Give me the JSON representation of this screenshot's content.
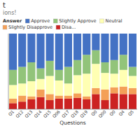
{
  "chart_data": {
    "type": "bar",
    "stacked": true,
    "title": "t",
    "subtitle": "ions!",
    "x_label": "Questions",
    "legend_title": "Answer",
    "legend": "top",
    "categories": [
      "Q1",
      "Q12",
      "Q13",
      "Q14",
      "Q15",
      "Q06",
      "Q17",
      "Q18",
      "Q19",
      "Q0",
      "Q00",
      "Q0",
      "Q4",
      "Q5"
    ],
    "series": [
      {
        "name": "Disa...",
        "color": "#CC2222",
        "values": [
          8,
          10,
          13,
          16,
          12,
          14,
          14,
          15,
          13,
          20,
          12,
          21,
          20,
          20
        ]
      },
      {
        "name": "Slightly Disapprove",
        "color": "#F4A058",
        "values": [
          6,
          8,
          4,
          10,
          8,
          4,
          4,
          6,
          4,
          8,
          14,
          8,
          10,
          8
        ]
      },
      {
        "name": "Neutral",
        "color": "#FFFFB3",
        "values": [
          18,
          16,
          20,
          14,
          24,
          20,
          16,
          24,
          30,
          32,
          22,
          18,
          22,
          16
        ]
      },
      {
        "name": "Slightly Approve",
        "color": "#92C47A",
        "values": [
          20,
          22,
          25,
          14,
          20,
          14,
          22,
          20,
          25,
          18,
          14,
          18,
          20,
          12
        ]
      },
      {
        "name": "Approve",
        "color": "#4472C4",
        "values": [
          48,
          44,
          38,
          46,
          36,
          48,
          44,
          35,
          28,
          22,
          38,
          35,
          28,
          44
        ]
      }
    ],
    "ylim": [
      0,
      100
    ],
    "yticks": [],
    "grid": false,
    "tick_labels": "x"
  }
}
